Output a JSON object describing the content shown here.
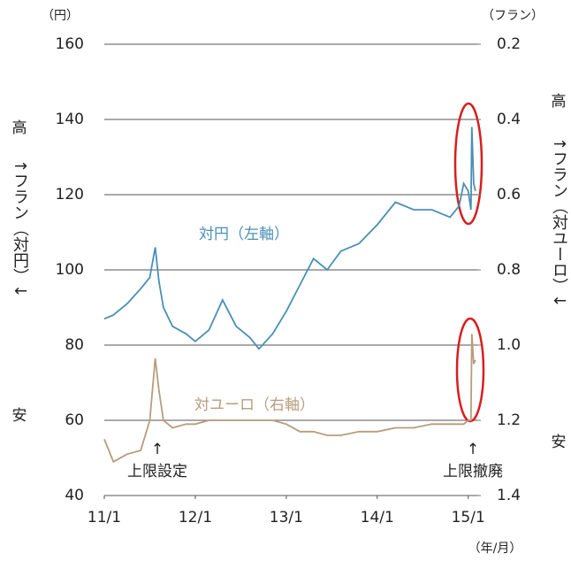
{
  "chart_data": {
    "type": "line",
    "unit_left": "（円）",
    "unit_right": "（フラン）",
    "unit_x": "（年/月）",
    "left_high": "高",
    "left_axis_label": "↑フラン（対円）↓",
    "left_low": "安",
    "right_high": "高",
    "right_axis_label": "↑フラン（対ユーロ）↓",
    "right_low": "安",
    "annotations": [
      "↑",
      "上限設定",
      "↑",
      "上限撤廃"
    ],
    "x": [
      11.0,
      11.1,
      11.25,
      11.4,
      11.5,
      11.56,
      11.6,
      11.65,
      11.75,
      11.9,
      12.0,
      12.15,
      12.3,
      12.45,
      12.6,
      12.7,
      12.85,
      13.0,
      13.15,
      13.3,
      13.45,
      13.6,
      13.8,
      14.0,
      14.2,
      14.4,
      14.6,
      14.8,
      14.9,
      14.95,
      15.0,
      15.03,
      15.04,
      15.06,
      15.08
    ],
    "xlim": [
      11,
      15.1
    ],
    "xticks": [
      {
        "value": 11,
        "label": "11/1"
      },
      {
        "value": 12,
        "label": "12/1"
      },
      {
        "value": 13,
        "label": "13/1"
      },
      {
        "value": 14,
        "label": "14/1"
      },
      {
        "value": 15,
        "label": "15/1"
      }
    ],
    "ylim": [
      40,
      160
    ],
    "yticks": [
      40,
      60,
      80,
      100,
      120,
      140,
      160
    ],
    "y2lim": [
      1.4,
      0.2
    ],
    "y2ticks": [
      {
        "value": 0.2,
        "label": "0.2"
      },
      {
        "value": 0.4,
        "label": "0.4"
      },
      {
        "value": 0.6,
        "label": "0.6"
      },
      {
        "value": 0.8,
        "label": "0.8"
      },
      {
        "value": 1,
        "label": "1.0"
      },
      {
        "value": 1.2,
        "label": "1.2"
      },
      {
        "value": 1.4,
        "label": "1.4"
      }
    ],
    "grid": true,
    "series": [
      {
        "name": "対円（左軸）",
        "color": "#4a8fb6",
        "values": [
          87,
          88,
          91,
          95,
          98,
          106,
          97,
          90,
          85,
          83,
          81,
          84,
          92,
          85,
          82,
          79,
          83,
          89,
          96,
          103,
          100,
          105,
          107,
          112,
          118,
          116,
          116,
          114,
          117,
          123,
          121,
          116,
          138,
          123,
          121
        ]
      },
      {
        "name": "対ユーロ（右軸）",
        "color": "#b89c7e",
        "axis": "y2",
        "values": [
          1.25,
          1.31,
          1.29,
          1.28,
          1.2,
          1.035,
          1.12,
          1.2,
          1.22,
          1.21,
          1.21,
          1.2,
          1.2,
          1.2,
          1.2,
          1.2,
          1.2,
          1.21,
          1.23,
          1.23,
          1.24,
          1.24,
          1.23,
          1.23,
          1.22,
          1.22,
          1.21,
          1.21,
          1.21,
          1.21,
          1.2,
          1.2,
          0.97,
          1.05,
          1.04
        ]
      }
    ]
  }
}
